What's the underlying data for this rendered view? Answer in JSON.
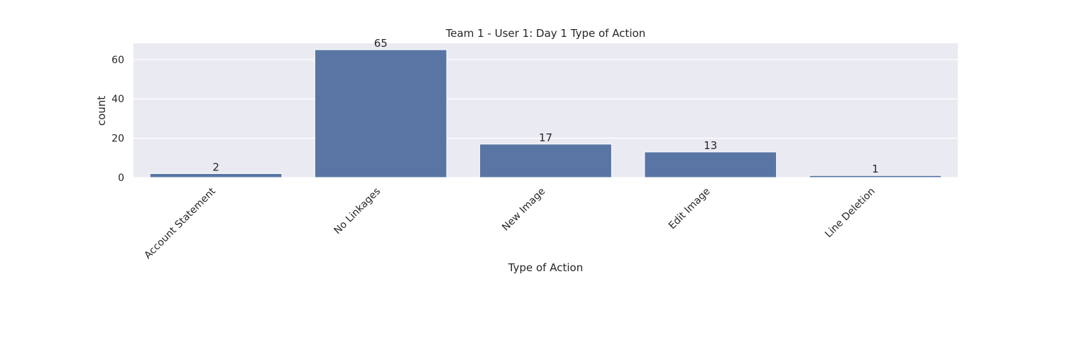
{
  "chart_data": {
    "type": "bar",
    "title": "Team 1 - User 1: Day 1 Type of Action",
    "xlabel": "Type of Action",
    "ylabel": "count",
    "categories": [
      "Account Statement",
      "No Linkages",
      "New Image",
      "Edit Image",
      "Line Deletion"
    ],
    "values": [
      2,
      65,
      17,
      13,
      1
    ],
    "ylim": [
      0,
      68.25
    ],
    "yticks": [
      0,
      20,
      40,
      60
    ],
    "grid": true,
    "colors": {
      "bar": "#5875a4",
      "plot_bg": "#eaeaf2",
      "grid": "#ffffff",
      "text": "#262626"
    }
  }
}
